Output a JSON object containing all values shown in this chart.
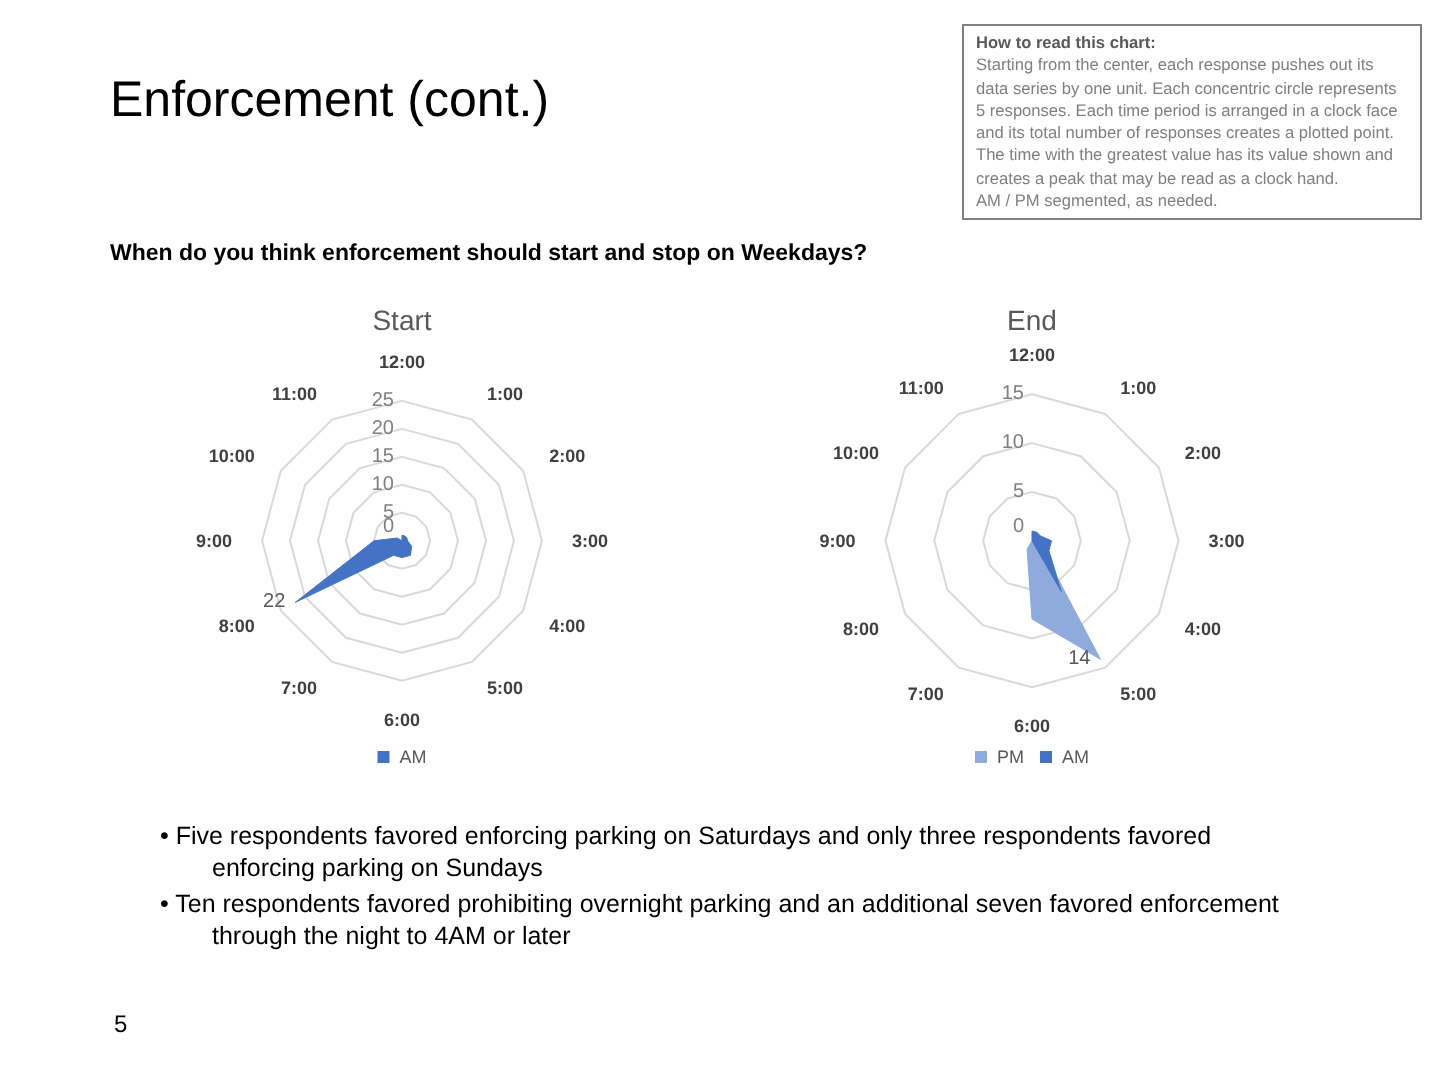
{
  "chart_data": [
    {
      "type": "radar",
      "title": "Start",
      "categories": [
        "12:00",
        "1:00",
        "2:00",
        "3:00",
        "4:00",
        "5:00",
        "6:00",
        "7:00",
        "8:00",
        "9:00",
        "10:00",
        "11:00"
      ],
      "ylim": [
        0,
        25
      ],
      "yticks": [
        0,
        5,
        10,
        15,
        20,
        25
      ],
      "grid": true,
      "legend": "bottom",
      "series": [
        {
          "name": "AM",
          "color": "#4472c4",
          "values": [
            1,
            1,
            1,
            1,
            2,
            3,
            3,
            3,
            22,
            5,
            1,
            0
          ],
          "value_labels": [
            null,
            null,
            null,
            null,
            null,
            null,
            null,
            null,
            "22",
            null,
            null,
            null
          ]
        }
      ]
    },
    {
      "type": "radar",
      "title": "End",
      "categories": [
        "12:00",
        "1:00",
        "2:00",
        "3:00",
        "4:00",
        "5:00",
        "6:00",
        "7:00",
        "8:00",
        "9:00",
        "10:00",
        "11:00"
      ],
      "ylim": [
        0,
        15
      ],
      "yticks": [
        0,
        5,
        10,
        15
      ],
      "grid": true,
      "legend": "bottom",
      "series": [
        {
          "name": "PM",
          "color": "#8faadc",
          "values": [
            0,
            0,
            0,
            0,
            1,
            14,
            8,
            1,
            0,
            0,
            0,
            0
          ],
          "value_labels": [
            null,
            null,
            null,
            null,
            null,
            "14",
            null,
            null,
            null,
            null,
            null,
            null
          ]
        },
        {
          "name": "AM",
          "color": "#4472c4",
          "values": [
            1,
            1,
            1,
            2,
            2,
            6,
            0,
            0,
            0,
            0,
            0,
            0
          ]
        }
      ]
    },
    {
      "type": "other",
      "title": "Enforcement (cont.)",
      "subtitle": "When do you think enforcement should start and stop on Weekdays?",
      "annotations": [
        "How to read this chart:\nStarting from the center, each response pushes out its data series by one unit. Each concentric circle represents 5 responses. Each time period is arranged in a clock face and its total number of responses creates a plotted point.  The time with the greatest value has its value shown and creates a peak that may be read as a clock hand.\nAM / PM segmented, as needed.",
        "• Five respondents favored enforcing parking on Saturdays and only three respondents favored enforcing parking on Sundays",
        "• Ten respondents favored prohibiting overnight parking and an additional seven favored enforcement through the night to 4AM or later",
        "5"
      ]
    }
  ]
}
